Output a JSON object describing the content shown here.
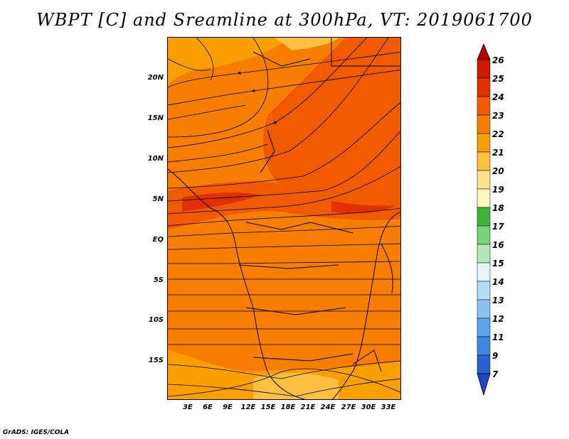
{
  "title": "WBPT [C] and Sreamline at 300hPa, VT: 2019061700",
  "credit": "GrADS: IGES/COLA",
  "map": {
    "lat_labels": [
      "20N",
      "15N",
      "10N",
      "5N",
      "EQ",
      "5S",
      "10S",
      "15S"
    ],
    "lon_labels": [
      "3E",
      "6E",
      "9E",
      "12E",
      "15E",
      "18E",
      "21E",
      "24E",
      "27E",
      "30E",
      "33E"
    ]
  },
  "colorbar": {
    "labels": [
      "26",
      "25",
      "24",
      "23",
      "22",
      "21",
      "20",
      "19",
      "18",
      "17",
      "16",
      "15",
      "14",
      "13",
      "12",
      "11",
      "9",
      "7"
    ],
    "colors": [
      "#b40000",
      "#cc1a00",
      "#e03000",
      "#f05a00",
      "#f77e00",
      "#f9a000",
      "#fbc040",
      "#fde08c",
      "#fff5c0",
      "#3cb43c",
      "#78d278",
      "#b4e6b4",
      "#e6f5fa",
      "#b4dcf5",
      "#8cc3f0",
      "#5aa5eb",
      "#3c87e1",
      "#2860d2",
      "#1e46c8"
    ]
  },
  "field_colors": {
    "orange": "#f77e00",
    "red_orange": "#f05a00",
    "light_orange": "#f9a000"
  }
}
